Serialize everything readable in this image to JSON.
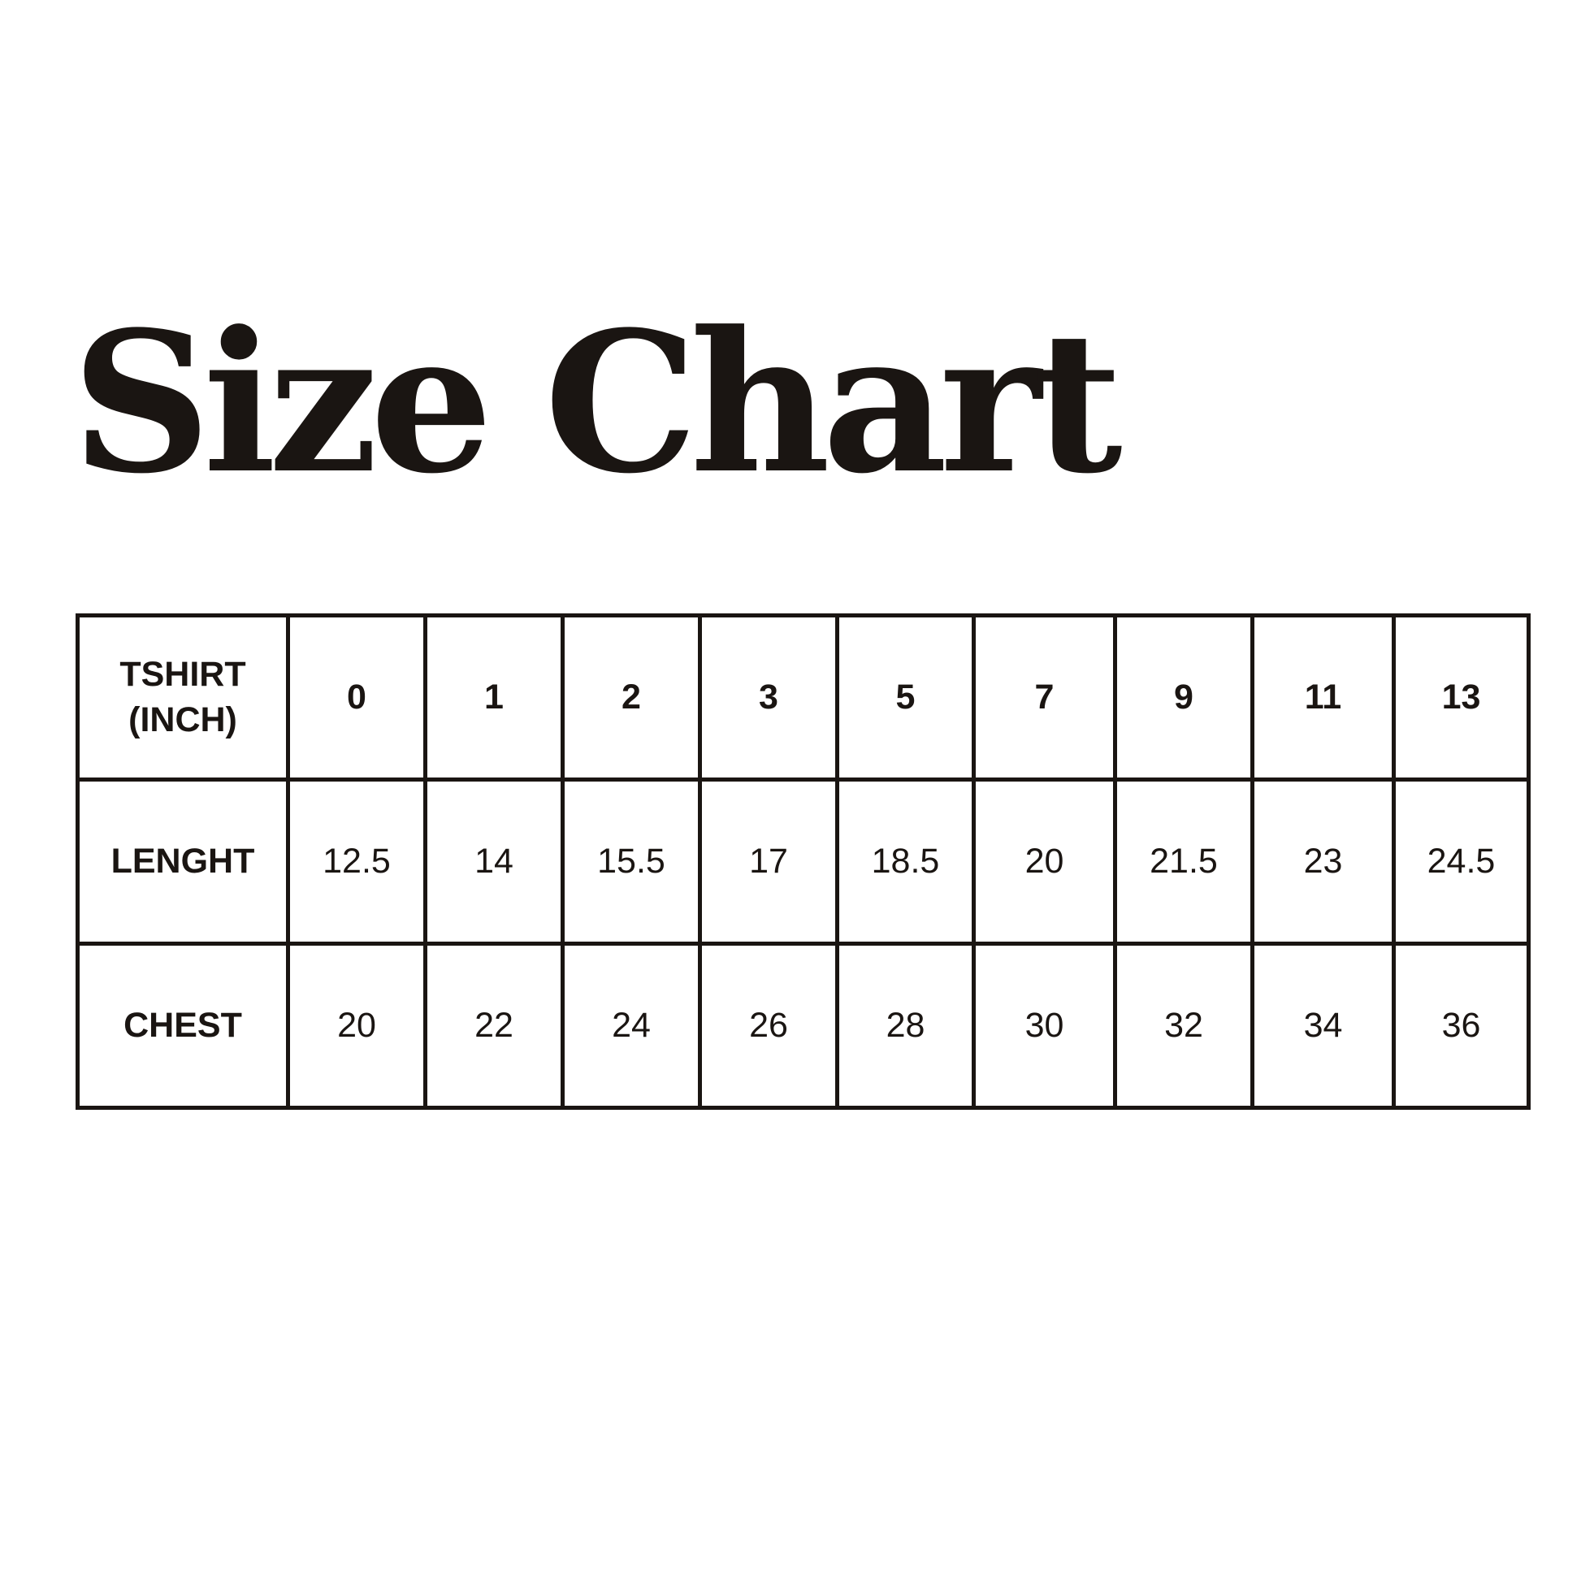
{
  "title": "Size Chart",
  "table": {
    "header_label_line1": "TSHIRT",
    "header_label_line2": "(INCH)",
    "sizes": [
      "0",
      "1",
      "2",
      "3",
      "5",
      "7",
      "9",
      "11",
      "13"
    ],
    "rows": [
      {
        "label": "LENGHT",
        "values": [
          "12.5",
          "14",
          "15.5",
          "17",
          "18.5",
          "20",
          "21.5",
          "23",
          "24.5"
        ]
      },
      {
        "label": "CHEST",
        "values": [
          "20",
          "22",
          "24",
          "26",
          "28",
          "30",
          "32",
          "34",
          "36"
        ]
      }
    ]
  },
  "colors": {
    "ink": "#1a1512",
    "background": "#ffffff"
  }
}
